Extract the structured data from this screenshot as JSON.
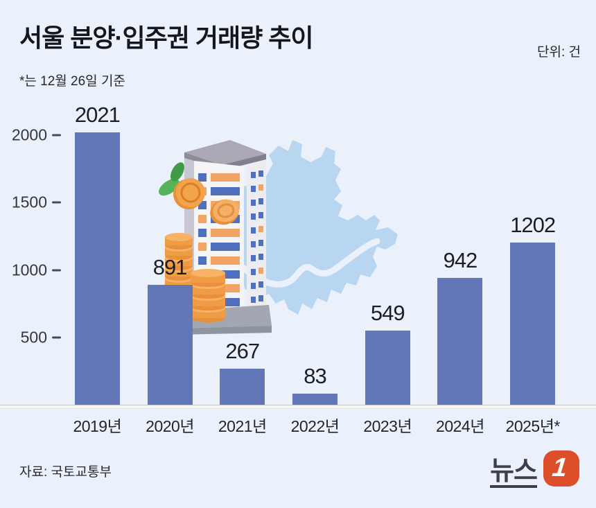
{
  "header": {
    "title": "서울 분양·입주권 거래량 추이",
    "unit_label": "단위: 건",
    "note": "*는 12월 26일 기준"
  },
  "chart_data": {
    "type": "bar",
    "title": "서울 분양·입주권 거래량 추이",
    "unit": "건",
    "categories": [
      "2019년",
      "2020년",
      "2021년",
      "2022년",
      "2023년",
      "2024년",
      "2025년*"
    ],
    "values": [
      2021,
      891,
      267,
      83,
      549,
      942,
      1202
    ],
    "value_labels_shown": true,
    "yticks": [
      500,
      1000,
      1500,
      2000
    ],
    "ylim": [
      0,
      2100
    ],
    "grid": false,
    "legend": "none",
    "bar_color": "#6277b8",
    "note": "2025년은 12월 26일 기준"
  },
  "illustration": {
    "icons": [
      "apartment-building-icon",
      "coin-stack-icon",
      "leaf-coin-icon",
      "seoul-map-silhouette-icon"
    ]
  },
  "footer": {
    "source": "자료: 국토교통부",
    "logo_text": "뉴스",
    "logo_badge": "1"
  },
  "colors": {
    "background": "#eaf1fa",
    "bar": "#6277b8",
    "map": "#b9d6f0",
    "logo_badge": "#dd4e2b",
    "coin": "#f09d44",
    "leaf": "#57b257",
    "text_dark": "#16161e"
  }
}
